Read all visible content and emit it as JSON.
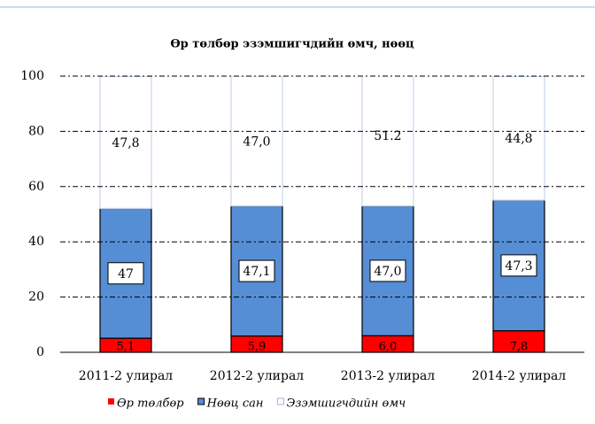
{
  "chart_data": {
    "type": "stacked_bar",
    "title": "Өр төлбөр эзэмшигчдийн өмч, нөөц",
    "categories": [
      "2011-2 улирал",
      "2012-2 улирал",
      "2013-2 улирал",
      "2014-2 улирал"
    ],
    "series": [
      {
        "name": "Өр төлбөр",
        "color": "#ff0000",
        "values": [
          5.1,
          5.9,
          6.0,
          7.8
        ],
        "value_labels": [
          "5,1",
          "5,9",
          "6,0",
          "7,8"
        ]
      },
      {
        "name": "Нөөц сан",
        "color": "#558ed5",
        "values": [
          47,
          47.1,
          47.0,
          47.3
        ],
        "value_labels": [
          "47",
          "47,1",
          "47,0",
          "47,3"
        ]
      },
      {
        "name": "Эзэмшигчдийн өмч",
        "color": "#ffffff",
        "values": [
          47.8,
          47.0,
          51.2,
          44.8
        ],
        "value_labels": [
          "47,8",
          "47,0",
          "51.2",
          "44,8"
        ]
      }
    ],
    "ylim": [
      0,
      100
    ],
    "yticks": [
      0,
      20,
      40,
      60,
      80,
      100
    ],
    "grid": true,
    "legend": "bottom"
  }
}
